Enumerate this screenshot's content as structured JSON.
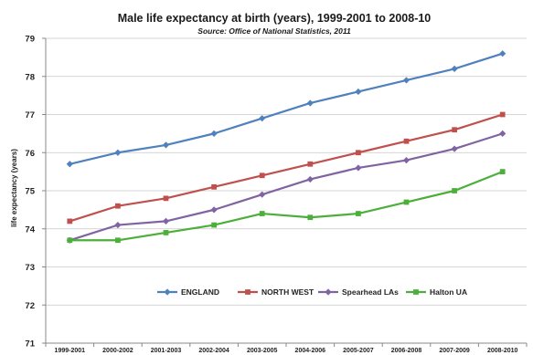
{
  "chart_data": {
    "type": "line",
    "title": "Male life expectancy at birth (years), 1999-2001 to 2008-10",
    "subtitle": "Source: Office of National Statistics, 2011",
    "ylabel": "life expectancy (years)",
    "xlabel": "",
    "ylim": [
      71,
      79
    ],
    "yticks": [
      71,
      72,
      73,
      74,
      75,
      76,
      77,
      78,
      79
    ],
    "grid": true,
    "legend_position": "bottom-inside",
    "categories": [
      "1999-2001",
      "2000-2002",
      "2001-2003",
      "2002-2004",
      "2003-2005",
      "2004-2006",
      "2005-2007",
      "2006-2008",
      "2007-2009",
      "2008-2010"
    ],
    "series": [
      {
        "name": "ENGLAND",
        "color": "#4f81bd",
        "marker": "diamond",
        "values": [
          75.7,
          76.0,
          76.2,
          76.5,
          76.9,
          77.3,
          77.6,
          77.9,
          78.2,
          78.6
        ]
      },
      {
        "name": "NORTH WEST",
        "color": "#c0504d",
        "marker": "square",
        "values": [
          74.2,
          74.6,
          74.8,
          75.1,
          75.4,
          75.7,
          76.0,
          76.3,
          76.6,
          77.0
        ]
      },
      {
        "name": "Spearhead LAs",
        "color": "#8064a2",
        "marker": "diamond",
        "values": [
          73.7,
          74.1,
          74.2,
          74.5,
          74.9,
          75.3,
          75.6,
          75.8,
          76.1,
          76.5
        ]
      },
      {
        "name": "Halton UA",
        "color": "#4caf3a",
        "marker": "square",
        "values": [
          73.7,
          73.7,
          73.9,
          74.1,
          74.4,
          74.3,
          74.4,
          74.7,
          75.0,
          75.5
        ]
      }
    ]
  }
}
